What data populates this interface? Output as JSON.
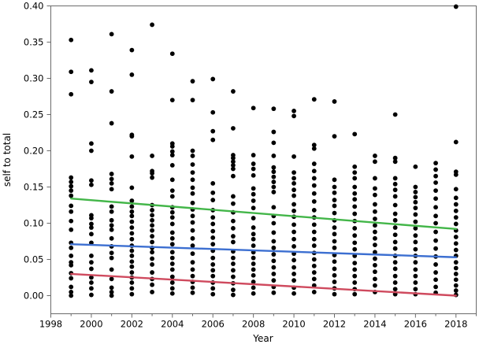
{
  "chart_data": {
    "type": "scatter",
    "title": "",
    "xlabel": "Year",
    "ylabel": "self to total",
    "xlim": [
      1998,
      2019
    ],
    "ylim": [
      -0.025,
      0.4
    ],
    "x_ticks": [
      "1998",
      "2000",
      "2002",
      "2004",
      "2006",
      "2008",
      "2010",
      "2012",
      "2014",
      "2016",
      "2018"
    ],
    "y_ticks": [
      "0.00",
      "0.05",
      "0.10",
      "0.15",
      "0.20",
      "0.25",
      "0.30",
      "0.35",
      "0.40"
    ],
    "grid": false,
    "legend": "none",
    "point_color": "#000000",
    "points_by_year": [
      {
        "year": 1999,
        "values": [
          0.353,
          0.309,
          0.278,
          0.163,
          0.157,
          0.151,
          0.145,
          0.138,
          0.124,
          0.116,
          0.103,
          0.091,
          0.073,
          0.066,
          0.055,
          0.046,
          0.042,
          0.031,
          0.024,
          0.012,
          0.005,
          0.0
        ]
      },
      {
        "year": 2000,
        "values": [
          0.311,
          0.295,
          0.21,
          0.2,
          0.159,
          0.153,
          0.111,
          0.107,
          0.099,
          0.094,
          0.085,
          0.073,
          0.055,
          0.046,
          0.037,
          0.025,
          0.018,
          0.01,
          0.001
        ]
      },
      {
        "year": 2001,
        "values": [
          0.361,
          0.282,
          0.238,
          0.168,
          0.161,
          0.155,
          0.147,
          0.123,
          0.116,
          0.104,
          0.097,
          0.091,
          0.079,
          0.068,
          0.059,
          0.052,
          0.036,
          0.023,
          0.011,
          0.005,
          0.0
        ]
      },
      {
        "year": 2002,
        "values": [
          0.339,
          0.305,
          0.222,
          0.22,
          0.192,
          0.149,
          0.131,
          0.123,
          0.116,
          0.11,
          0.102,
          0.094,
          0.086,
          0.078,
          0.069,
          0.062,
          0.055,
          0.047,
          0.04,
          0.032,
          0.025,
          0.018,
          0.01,
          0.002
        ]
      },
      {
        "year": 2003,
        "values": [
          0.374,
          0.193,
          0.172,
          0.169,
          0.163,
          0.125,
          0.118,
          0.111,
          0.104,
          0.097,
          0.09,
          0.082,
          0.074,
          0.066,
          0.06,
          0.051,
          0.043,
          0.032,
          0.023,
          0.015,
          0.005
        ]
      },
      {
        "year": 2004,
        "values": [
          0.334,
          0.27,
          0.21,
          0.206,
          0.199,
          0.194,
          0.18,
          0.16,
          0.145,
          0.137,
          0.122,
          0.115,
          0.108,
          0.099,
          0.087,
          0.079,
          0.071,
          0.06,
          0.052,
          0.044,
          0.036,
          0.026,
          0.018,
          0.01,
          0.003
        ]
      },
      {
        "year": 2005,
        "values": [
          0.296,
          0.27,
          0.2,
          0.193,
          0.181,
          0.17,
          0.16,
          0.149,
          0.141,
          0.128,
          0.119,
          0.11,
          0.101,
          0.09,
          0.079,
          0.069,
          0.058,
          0.046,
          0.036,
          0.027,
          0.019,
          0.011,
          0.004
        ]
      },
      {
        "year": 2006,
        "values": [
          0.299,
          0.253,
          0.227,
          0.215,
          0.155,
          0.142,
          0.132,
          0.118,
          0.108,
          0.099,
          0.089,
          0.08,
          0.071,
          0.062,
          0.052,
          0.043,
          0.035,
          0.027,
          0.018,
          0.01,
          0.002
        ]
      },
      {
        "year": 2007,
        "values": [
          0.282,
          0.231,
          0.194,
          0.19,
          0.185,
          0.18,
          0.175,
          0.165,
          0.137,
          0.127,
          0.115,
          0.103,
          0.093,
          0.082,
          0.074,
          0.061,
          0.052,
          0.044,
          0.035,
          0.026,
          0.017,
          0.008,
          0.001
        ]
      },
      {
        "year": 2008,
        "values": [
          0.259,
          0.194,
          0.182,
          0.175,
          0.166,
          0.148,
          0.14,
          0.131,
          0.121,
          0.107,
          0.094,
          0.085,
          0.078,
          0.069,
          0.06,
          0.052,
          0.044,
          0.036,
          0.028,
          0.019,
          0.011,
          0.003
        ]
      },
      {
        "year": 2009,
        "values": [
          0.258,
          0.226,
          0.211,
          0.193,
          0.177,
          0.171,
          0.164,
          0.157,
          0.15,
          0.143,
          0.122,
          0.11,
          0.1,
          0.087,
          0.075,
          0.066,
          0.057,
          0.048,
          0.039,
          0.03,
          0.021,
          0.012,
          0.004
        ]
      },
      {
        "year": 2010,
        "values": [
          0.255,
          0.248,
          0.192,
          0.17,
          0.162,
          0.155,
          0.146,
          0.138,
          0.126,
          0.117,
          0.109,
          0.098,
          0.088,
          0.078,
          0.068,
          0.058,
          0.049,
          0.039,
          0.03,
          0.021,
          0.011,
          0.003
        ]
      },
      {
        "year": 2011,
        "values": [
          0.271,
          0.208,
          0.203,
          0.182,
          0.172,
          0.162,
          0.152,
          0.141,
          0.13,
          0.118,
          0.108,
          0.098,
          0.088,
          0.078,
          0.069,
          0.059,
          0.05,
          0.041,
          0.032,
          0.023,
          0.014,
          0.005
        ]
      },
      {
        "year": 2012,
        "values": [
          0.268,
          0.22,
          0.16,
          0.15,
          0.142,
          0.132,
          0.124,
          0.114,
          0.104,
          0.094,
          0.085,
          0.075,
          0.066,
          0.056,
          0.047,
          0.037,
          0.028,
          0.019,
          0.01,
          0.002
        ]
      },
      {
        "year": 2013,
        "values": [
          0.223,
          0.178,
          0.17,
          0.162,
          0.15,
          0.141,
          0.133,
          0.123,
          0.113,
          0.103,
          0.093,
          0.083,
          0.073,
          0.064,
          0.055,
          0.045,
          0.036,
          0.027,
          0.018,
          0.009,
          0.002
        ]
      },
      {
        "year": 2014,
        "values": [
          0.193,
          0.185,
          0.162,
          0.148,
          0.139,
          0.126,
          0.116,
          0.106,
          0.097,
          0.088,
          0.079,
          0.07,
          0.06,
          0.051,
          0.042,
          0.033,
          0.023,
          0.014,
          0.005
        ]
      },
      {
        "year": 2015,
        "values": [
          0.25,
          0.19,
          0.185,
          0.162,
          0.154,
          0.146,
          0.137,
          0.125,
          0.113,
          0.104,
          0.094,
          0.084,
          0.074,
          0.065,
          0.055,
          0.046,
          0.037,
          0.027,
          0.018,
          0.009,
          0.002
        ]
      },
      {
        "year": 2016,
        "values": [
          0.178,
          0.15,
          0.143,
          0.136,
          0.129,
          0.121,
          0.112,
          0.102,
          0.093,
          0.083,
          0.074,
          0.064,
          0.055,
          0.046,
          0.036,
          0.027,
          0.018,
          0.009,
          0.002
        ]
      },
      {
        "year": 2017,
        "values": [
          0.183,
          0.174,
          0.165,
          0.156,
          0.145,
          0.134,
          0.122,
          0.11,
          0.1,
          0.088,
          0.076,
          0.065,
          0.054,
          0.043,
          0.032,
          0.022,
          0.012,
          0.004
        ]
      },
      {
        "year": 2018,
        "values": [
          0.399,
          0.212,
          0.171,
          0.167,
          0.147,
          0.135,
          0.126,
          0.117,
          0.108,
          0.099,
          0.09,
          0.081,
          0.072,
          0.063,
          0.055,
          0.046,
          0.038,
          0.03,
          0.022,
          0.014,
          0.007,
          0.001
        ]
      }
    ],
    "fit_lines": [
      {
        "color": "#43b649",
        "x": [
          1999,
          2018
        ],
        "y": [
          0.134,
          0.092
        ]
      },
      {
        "color": "#3c6fd1",
        "x": [
          1999,
          2018
        ],
        "y": [
          0.071,
          0.053
        ]
      },
      {
        "color": "#cf4a5e",
        "x": [
          1999,
          2018
        ],
        "y": [
          0.03,
          0.0
        ]
      }
    ]
  }
}
